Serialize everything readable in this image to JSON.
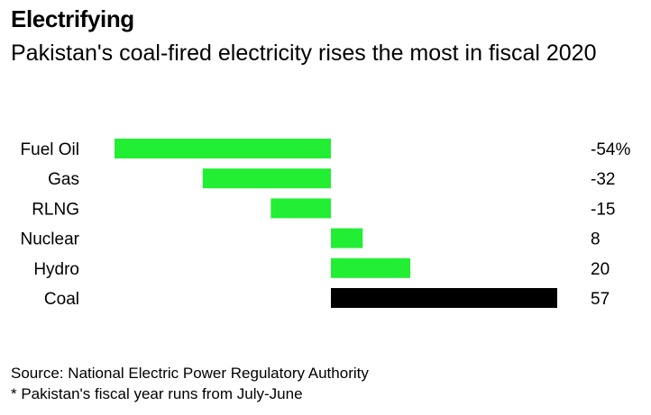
{
  "header": {
    "title": "Electrifying",
    "subtitle": "Pakistan's coal-fired electricity rises the most in fiscal 2020"
  },
  "footer": {
    "source": "Source: National Electric Power Regulatory Authority",
    "note": "* Pakistan's fiscal year runs from July-June"
  },
  "colors": {
    "increase": "#22ee33",
    "highlight": "#000000"
  },
  "chart_data": {
    "type": "bar",
    "orientation": "horizontal",
    "title": "Electrifying",
    "subtitle": "Pakistan's coal-fired electricity rises the most in fiscal 2020",
    "categories": [
      "Fuel Oil",
      "Gas",
      "RLNG",
      "Nuclear",
      "Hydro",
      "Coal"
    ],
    "values": [
      -54,
      -32,
      -15,
      8,
      20,
      57
    ],
    "value_labels": [
      "-54%",
      "-32",
      "-15",
      "8",
      "20",
      "57"
    ],
    "highlight_category": "Coal",
    "xlim": [
      -54,
      57
    ],
    "grid": false,
    "legend": "none"
  }
}
